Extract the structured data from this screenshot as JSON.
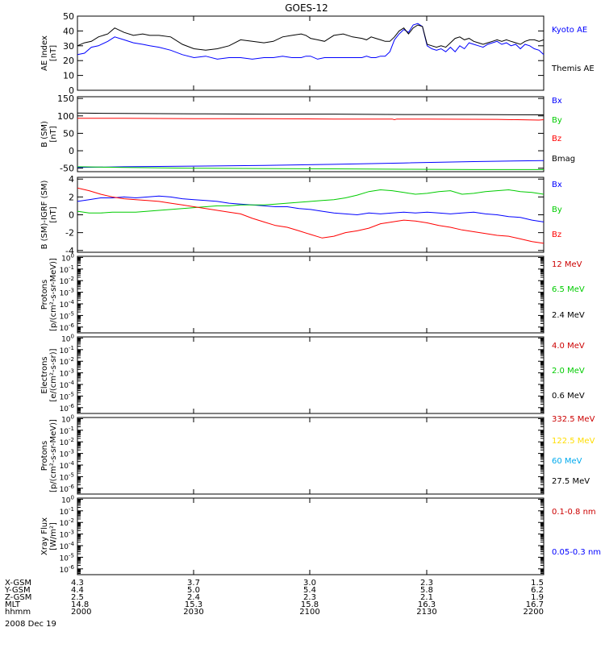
{
  "chart_data": {
    "title": "GOES-12",
    "date_label": "2008 Dec 19",
    "panels": [
      {
        "id": "ae",
        "type": "line",
        "ylabel": [
          "AE Index",
          "[nT]"
        ],
        "ylim": [
          0,
          50
        ],
        "yticks": [
          0,
          10,
          20,
          30,
          40,
          50
        ],
        "ytick_labels": [
          "0",
          "10",
          "20",
          "30",
          "40",
          "50"
        ],
        "log": false,
        "series": [
          {
            "name": "Kyoto AE",
            "color": "#0000ff",
            "x": [
              2000,
              2003,
              2006,
              2009,
              2013,
              2016,
              2020,
              2024,
              2028,
              2031,
              2035,
              2040,
              2045,
              2050,
              2055,
              2060,
              2065,
              2070,
              2075,
              2080,
              2084,
              2088,
              2092,
              2096,
              2098,
              2100,
              2103,
              2106,
              2108,
              2110,
              2114,
              2118,
              2122,
              2124,
              2126,
              2128,
              2130,
              2132,
              2134,
              2136,
              2138,
              2140,
              2142,
              2144,
              2146,
              2148,
              2150,
              2152,
              2154,
              2156,
              2158,
              2160,
              2162,
              2164,
              2166,
              2168,
              2170,
              2172,
              2174,
              2176,
              2178,
              2180,
              2182,
              2184,
              2186,
              2188,
              2190,
              2192,
              2194,
              2196,
              2198,
              2200
            ],
            "y": [
              24,
              25,
              29,
              30,
              33,
              36,
              34,
              32,
              31,
              30,
              29,
              27,
              24,
              22,
              23,
              21,
              22,
              22,
              21,
              22,
              22,
              23,
              22,
              22,
              23,
              23,
              21,
              22,
              22,
              22,
              22,
              22,
              22,
              23,
              22,
              22,
              23,
              23,
              26,
              34,
              38,
              41,
              39,
              44,
              45,
              43,
              30,
              28,
              27,
              28,
              26,
              29,
              26,
              30,
              28,
              32,
              31,
              30,
              29,
              31,
              32,
              33,
              31,
              32,
              30,
              31,
              28,
              31,
              30,
              28,
              27,
              24
            ]
          },
          {
            "name": "Themis AE",
            "color": "#000000",
            "x": [
              2000,
              2003,
              2006,
              2009,
              2013,
              2016,
              2020,
              2024,
              2028,
              2031,
              2035,
              2040,
              2045,
              2050,
              2055,
              2060,
              2065,
              2070,
              2075,
              2080,
              2084,
              2088,
              2092,
              2096,
              2098,
              2100,
              2103,
              2106,
              2108,
              2110,
              2114,
              2118,
              2122,
              2124,
              2126,
              2128,
              2130,
              2132,
              2134,
              2136,
              2138,
              2140,
              2142,
              2144,
              2146,
              2148,
              2150,
              2152,
              2154,
              2156,
              2158,
              2160,
              2162,
              2164,
              2166,
              2168,
              2170,
              2172,
              2174,
              2176,
              2178,
              2180,
              2182,
              2184,
              2186,
              2188,
              2190,
              2192,
              2194,
              2196,
              2198,
              2200
            ],
            "y": [
              30,
              32,
              33,
              36,
              38,
              42,
              39,
              37,
              38,
              37,
              37,
              36,
              31,
              28,
              27,
              28,
              30,
              34,
              33,
              32,
              33,
              36,
              37,
              38,
              37,
              35,
              34,
              33,
              35,
              37,
              38,
              36,
              35,
              34,
              36,
              35,
              34,
              33,
              33,
              36,
              40,
              42,
              38,
              42,
              44,
              43,
              31,
              30,
              29,
              30,
              29,
              32,
              35,
              36,
              34,
              35,
              33,
              32,
              31,
              32,
              33,
              34,
              33,
              34,
              33,
              32,
              31,
              33,
              34,
              34,
              33,
              34
            ]
          }
        ],
        "legend": [
          {
            "label": "Kyoto AE",
            "color": "#0000ff"
          },
          {
            "label": "Themis AE",
            "color": "#000000"
          }
        ]
      },
      {
        "id": "bsm",
        "type": "line",
        "ylabel": [
          "B (SM)",
          "[nT]"
        ],
        "ylim": [
          -60,
          155
        ],
        "yticks": [
          -50,
          0,
          50,
          100,
          150
        ],
        "ytick_labels": [
          "-50",
          "0",
          "50",
          "100",
          "150"
        ],
        "log": false,
        "series": [
          {
            "name": "Bmag",
            "color": "#000000",
            "x": [
              2000,
              2020,
              2050,
              2080,
              2110,
              2140,
              2170,
              2200
            ],
            "y": [
              108,
              107,
              106,
              105,
              105,
              104,
              104,
              103
            ]
          },
          {
            "name": "Bz",
            "color": "#ff0000",
            "x": [
              2000,
              2020,
              2050,
              2080,
              2110,
              2135,
              2136,
              2137,
              2150,
              2180,
              2198,
              2200
            ],
            "y": [
              93,
              93,
              92,
              92,
              91,
              91,
              89,
              91,
              91,
              90,
              88,
              89
            ]
          },
          {
            "name": "Bx",
            "color": "#0000ff",
            "x": [
              2000,
              2020,
              2050,
              2080,
              2110,
              2140,
              2170,
              2200
            ],
            "y": [
              -48,
              -46,
              -44,
              -42,
              -39,
              -35,
              -31,
              -28
            ]
          },
          {
            "name": "By",
            "color": "#00cc00",
            "x": [
              2000,
              2020,
              2050,
              2080,
              2110,
              2140,
              2170,
              2200
            ],
            "y": [
              -46,
              -48,
              -50,
              -51,
              -52,
              -53,
              -54,
              -54
            ]
          }
        ],
        "legend": [
          {
            "label": "Bx",
            "color": "#0000ff"
          },
          {
            "label": "By",
            "color": "#00cc00"
          },
          {
            "label": "Bz",
            "color": "#ff0000"
          },
          {
            "label": "Bmag",
            "color": "#000000"
          }
        ]
      },
      {
        "id": "db",
        "type": "line",
        "ylabel": [
          "B (SM)-IGRF (SM)",
          "[nT]"
        ],
        "ylim": [
          -4.2,
          4.2
        ],
        "yticks": [
          -4,
          -2,
          0,
          2,
          4
        ],
        "ytick_labels": [
          "-4",
          "-2",
          "0",
          "2",
          "4"
        ],
        "log": false,
        "series": [
          {
            "name": "Bx",
            "color": "#0000ff",
            "x": [
              2000,
              2005,
              2010,
              2015,
              2020,
              2025,
              2030,
              2035,
              2040,
              2045,
              2050,
              2055,
              2060,
              2065,
              2070,
              2075,
              2080,
              2085,
              2090,
              2095,
              2100,
              2105,
              2110,
              2115,
              2120,
              2125,
              2130,
              2135,
              2140,
              2145,
              2150,
              2155,
              2160,
              2165,
              2170,
              2175,
              2180,
              2185,
              2190,
              2195,
              2200
            ],
            "y": [
              1.5,
              1.7,
              1.9,
              1.9,
              2.0,
              1.9,
              2.0,
              2.1,
              2.0,
              1.8,
              1.7,
              1.6,
              1.5,
              1.3,
              1.2,
              1.1,
              1.0,
              0.9,
              0.9,
              0.7,
              0.6,
              0.4,
              0.2,
              0.1,
              0.0,
              0.2,
              0.1,
              0.2,
              0.3,
              0.2,
              0.3,
              0.2,
              0.1,
              0.2,
              0.3,
              0.1,
              0.0,
              -0.2,
              -0.3,
              -0.6,
              -0.8
            ]
          },
          {
            "name": "By",
            "color": "#00cc00",
            "x": [
              2000,
              2005,
              2010,
              2015,
              2020,
              2025,
              2030,
              2035,
              2040,
              2045,
              2050,
              2055,
              2060,
              2065,
              2070,
              2075,
              2080,
              2085,
              2090,
              2095,
              2100,
              2105,
              2110,
              2115,
              2120,
              2125,
              2130,
              2135,
              2140,
              2145,
              2150,
              2155,
              2160,
              2165,
              2170,
              2175,
              2180,
              2185,
              2190,
              2195,
              2200
            ],
            "y": [
              0.4,
              0.2,
              0.2,
              0.3,
              0.3,
              0.3,
              0.4,
              0.5,
              0.6,
              0.7,
              0.8,
              0.9,
              1.0,
              1.0,
              1.1,
              1.1,
              1.1,
              1.2,
              1.3,
              1.4,
              1.5,
              1.6,
              1.7,
              1.9,
              2.2,
              2.6,
              2.8,
              2.7,
              2.5,
              2.3,
              2.4,
              2.6,
              2.7,
              2.3,
              2.4,
              2.6,
              2.7,
              2.8,
              2.6,
              2.5,
              2.3
            ]
          },
          {
            "name": "Bz",
            "color": "#ff0000",
            "x": [
              2000,
              2005,
              2010,
              2015,
              2020,
              2025,
              2030,
              2035,
              2040,
              2045,
              2050,
              2055,
              2060,
              2065,
              2070,
              2075,
              2080,
              2085,
              2090,
              2095,
              2100,
              2105,
              2110,
              2115,
              2120,
              2125,
              2130,
              2135,
              2140,
              2145,
              2150,
              2155,
              2160,
              2165,
              2170,
              2175,
              2180,
              2185,
              2190,
              2195,
              2200
            ],
            "y": [
              3.0,
              2.7,
              2.3,
              2.0,
              1.8,
              1.7,
              1.6,
              1.5,
              1.3,
              1.1,
              0.9,
              0.7,
              0.5,
              0.3,
              0.1,
              -0.4,
              -0.8,
              -1.2,
              -1.4,
              -1.8,
              -2.2,
              -2.6,
              -2.4,
              -2.0,
              -1.8,
              -1.5,
              -1.0,
              -0.8,
              -0.6,
              -0.7,
              -0.9,
              -1.2,
              -1.4,
              -1.7,
              -1.9,
              -2.1,
              -2.3,
              -2.4,
              -2.7,
              -3.0,
              -3.2
            ]
          }
        ],
        "legend": [
          {
            "label": "Bx",
            "color": "#0000ff"
          },
          {
            "label": "By",
            "color": "#00cc00"
          },
          {
            "label": "Bz",
            "color": "#ff0000"
          }
        ]
      },
      {
        "id": "protons1",
        "type": "line",
        "ylabel": [
          "Protons",
          "[p/(cm²-s-sr-MeV)]"
        ],
        "log": true,
        "ylim_exp": [
          -6.5,
          0.1
        ],
        "ytick_exp": [
          0,
          -1,
          -2,
          -3,
          -4,
          -5,
          -6
        ],
        "series": [],
        "legend": [
          {
            "label": "12 MeV",
            "color": "#cc0000"
          },
          {
            "label": "6.5 MeV",
            "color": "#00cc00"
          },
          {
            "label": "2.4 MeV",
            "color": "#000000"
          }
        ]
      },
      {
        "id": "electrons",
        "type": "line",
        "ylabel": [
          "Electrons",
          "[e/(cm²-s-sr)]"
        ],
        "log": true,
        "ylim_exp": [
          -6.5,
          0.1
        ],
        "ytick_exp": [
          0,
          -1,
          -2,
          -3,
          -4,
          -5,
          -6
        ],
        "series": [],
        "legend": [
          {
            "label": "4.0 MeV",
            "color": "#cc0000"
          },
          {
            "label": "2.0 MeV",
            "color": "#00cc00"
          },
          {
            "label": "0.6 MeV",
            "color": "#000000"
          }
        ]
      },
      {
        "id": "protons2",
        "type": "line",
        "ylabel": [
          "Protons",
          "[p/(cm²-s-sr-MeV)]"
        ],
        "log": true,
        "ylim_exp": [
          -6.5,
          0.1
        ],
        "ytick_exp": [
          0,
          -1,
          -2,
          -3,
          -4,
          -5,
          -6
        ],
        "series": [],
        "legend": [
          {
            "label": "332.5 MeV",
            "color": "#cc0000"
          },
          {
            "label": "122.5 MeV",
            "color": "#ffdd00"
          },
          {
            "label": "60 MeV",
            "color": "#00aaee"
          },
          {
            "label": "27.5 MeV",
            "color": "#000000"
          }
        ]
      },
      {
        "id": "xray",
        "type": "line",
        "ylabel": [
          "Xray Flux",
          "[W/m²]"
        ],
        "log": true,
        "ylim_exp": [
          -6.5,
          0.1
        ],
        "ytick_exp": [
          0,
          -1,
          -2,
          -3,
          -4,
          -5,
          -6
        ],
        "series": [],
        "legend": [
          {
            "label": "0.1-0.8 nm",
            "color": "#cc0000"
          },
          {
            "label": "0.05-0.3 nm",
            "color": "#0000ff"
          }
        ]
      }
    ],
    "x_axis": {
      "range": [
        2000,
        2200
      ],
      "ticks": [
        2000,
        2030,
        2100,
        2130,
        2200
      ],
      "rows": [
        {
          "label": "X-GSM",
          "values": [
            "4.3",
            "3.7",
            "3.0",
            "2.3",
            "1.5"
          ]
        },
        {
          "label": "Y-GSM",
          "values": [
            "4.4",
            "5.0",
            "5.4",
            "5.8",
            "6.2"
          ]
        },
        {
          "label": "Z-GSM",
          "values": [
            "2.5",
            "2.4",
            "2.3",
            "2.1",
            "1.9"
          ]
        },
        {
          "label": "MLT",
          "values": [
            "14.8",
            "15.3",
            "15.8",
            "16.3",
            "16.7"
          ]
        },
        {
          "label": "hhmm",
          "values": [
            "2000",
            "2030",
            "2100",
            "2130",
            "2200"
          ]
        }
      ]
    }
  }
}
